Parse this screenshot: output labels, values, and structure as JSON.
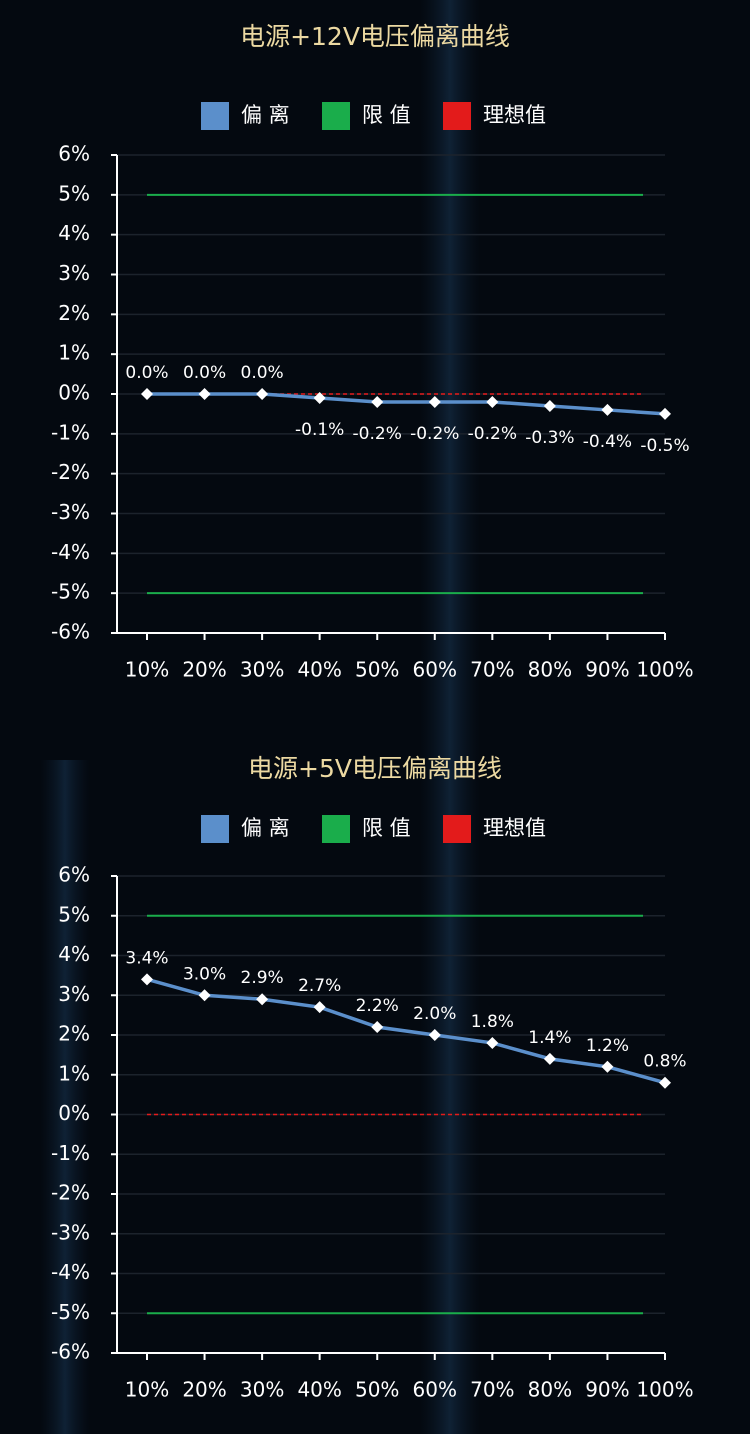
{
  "chart_data": [
    {
      "type": "line",
      "title": "电源+12V电压偏离曲线",
      "categories": [
        "10%",
        "20%",
        "30%",
        "40%",
        "50%",
        "60%",
        "70%",
        "80%",
        "90%",
        "100%"
      ],
      "series": [
        {
          "name": "偏 离",
          "color": "#5b8fcb",
          "values": [
            0,
            0,
            0,
            -0.1,
            -0.2,
            -0.2,
            -0.2,
            -0.3,
            -0.4,
            -0.5
          ],
          "value_labels": [
            "0.0%",
            "0.0%",
            "0.0%",
            "-0.1%",
            "-0.2%",
            "-0.2%",
            "-0.2%",
            "-0.3%",
            "-0.4%",
            "-0.5%"
          ]
        },
        {
          "name": "限 值",
          "color": "#1aad4b",
          "levels": [
            5,
            -5
          ]
        },
        {
          "name": "理想值",
          "color": "#e31b1b",
          "levels": [
            0
          ]
        }
      ],
      "ylim": [
        -6,
        6
      ],
      "yticks": [
        {
          "value": 6,
          "label": "6%"
        },
        {
          "value": 5,
          "label": "5%"
        },
        {
          "value": 4,
          "label": "4%"
        },
        {
          "value": 3,
          "label": "3%"
        },
        {
          "value": 2,
          "label": "2%"
        },
        {
          "value": 1,
          "label": "1%"
        },
        {
          "value": 0,
          "label": "0%"
        },
        {
          "value": -1,
          "label": "-1%"
        },
        {
          "value": -2,
          "label": "-2%"
        },
        {
          "value": -3,
          "label": "-3%"
        },
        {
          "value": -4,
          "label": "-4%"
        },
        {
          "value": -5,
          "label": "-5%"
        },
        {
          "value": -6,
          "label": "-6%"
        }
      ],
      "grid": true
    },
    {
      "type": "line",
      "title": "电源+5V电压偏离曲线",
      "categories": [
        "10%",
        "20%",
        "30%",
        "40%",
        "50%",
        "60%",
        "70%",
        "80%",
        "90%",
        "100%"
      ],
      "series": [
        {
          "name": "偏 离",
          "color": "#5b8fcb",
          "values": [
            3.4,
            3.0,
            2.9,
            2.7,
            2.2,
            2.0,
            1.8,
            1.4,
            1.2,
            0.8
          ],
          "value_labels": [
            "3.4%",
            "3.0%",
            "2.9%",
            "2.7%",
            "2.2%",
            "2.0%",
            "1.8%",
            "1.4%",
            "1.2%",
            "0.8%"
          ]
        },
        {
          "name": "限 值",
          "color": "#1aad4b",
          "levels": [
            5,
            -5
          ]
        },
        {
          "name": "理想值",
          "color": "#e31b1b",
          "levels": [
            0
          ]
        }
      ],
      "ylim": [
        -6,
        6
      ],
      "yticks": [
        {
          "value": 6,
          "label": "6%"
        },
        {
          "value": 5,
          "label": "5%"
        },
        {
          "value": 4,
          "label": "4%"
        },
        {
          "value": 3,
          "label": "3%"
        },
        {
          "value": 2,
          "label": "2%"
        },
        {
          "value": 1,
          "label": "1%"
        },
        {
          "value": 0,
          "label": "0%"
        },
        {
          "value": -1,
          "label": "-1%"
        },
        {
          "value": -2,
          "label": "-2%"
        },
        {
          "value": -3,
          "label": "-3%"
        },
        {
          "value": -4,
          "label": "-4%"
        },
        {
          "value": -5,
          "label": "-5%"
        },
        {
          "value": -6,
          "label": "-6%"
        }
      ],
      "grid": true
    }
  ]
}
